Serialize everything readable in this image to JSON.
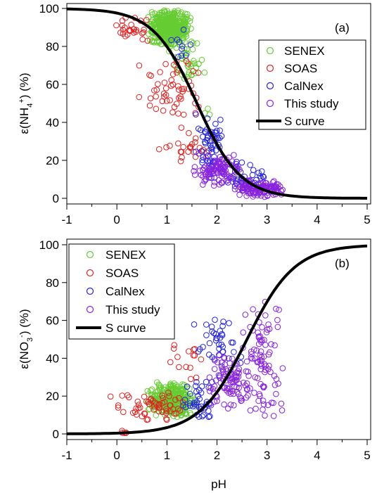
{
  "chart_data": [
    {
      "type": "scatter",
      "panel_label": "(a)",
      "ylabel_prefix": "ε(NH",
      "ylabel_sub": "4",
      "ylabel_sup": "+",
      "ylabel_suffix": ") (%)",
      "xlabel": "",
      "xlim": [
        -1,
        5
      ],
      "ylim": [
        0,
        100
      ],
      "x_ticks": [
        "-1",
        "0",
        "1",
        "2",
        "3",
        "4",
        "5"
      ],
      "y_ticks": [
        "0",
        "20",
        "40",
        "60",
        "80",
        "100"
      ],
      "legend_position": "right",
      "legend": [
        {
          "name": "SENEX",
          "marker": "circle",
          "color": "#66cc33"
        },
        {
          "name": "SOAS",
          "marker": "circle",
          "color": "#dd2222"
        },
        {
          "name": "CalNex",
          "marker": "circle",
          "color": "#2222dd"
        },
        {
          "name": "This study",
          "marker": "circle",
          "color": "#8822dd"
        },
        {
          "name": "S curve",
          "marker": "line",
          "color": "#000000"
        }
      ],
      "series": [
        {
          "name": "SENEX",
          "color": "#66cc33",
          "clusters": [
            {
              "x": [
                0.6,
                1.5
              ],
              "y": [
                80,
                100
              ],
              "n": 420
            },
            {
              "x": [
                1.0,
                1.8
              ],
              "y": [
                60,
                85
              ],
              "n": 40
            },
            {
              "x": [
                1.6,
                1.9
              ],
              "y": [
                42,
                50
              ],
              "n": 3
            }
          ]
        },
        {
          "name": "SOAS",
          "color": "#dd2222",
          "clusters": [
            {
              "x": [
                -0.1,
                0.7
              ],
              "y": [
                82,
                97
              ],
              "n": 28
            },
            {
              "x": [
                0.4,
                1.8
              ],
              "y": [
                40,
                75
              ],
              "n": 55
            },
            {
              "x": [
                0.8,
                2.0
              ],
              "y": [
                15,
                40
              ],
              "n": 25
            }
          ]
        },
        {
          "name": "CalNex",
          "color": "#2222dd",
          "clusters": [
            {
              "x": [
                1.5,
                2.2
              ],
              "y": [
                8,
                45
              ],
              "n": 55
            },
            {
              "x": [
                2.0,
                3.0
              ],
              "y": [
                2,
                20
              ],
              "n": 35
            },
            {
              "x": [
                1.0,
                1.6
              ],
              "y": [
                60,
                100
              ],
              "n": 10
            }
          ]
        },
        {
          "name": "This study",
          "color": "#8822dd",
          "clusters": [
            {
              "x": [
                1.5,
                2.5
              ],
              "y": [
                5,
                25
              ],
              "n": 110
            },
            {
              "x": [
                2.3,
                3.4
              ],
              "y": [
                0,
                10
              ],
              "n": 130
            }
          ]
        }
      ],
      "s_curve": {
        "midpoint": 1.6,
        "slope": 2.3,
        "increasing": false
      }
    },
    {
      "type": "scatter",
      "panel_label": "(b)",
      "ylabel_prefix": "ε(NO",
      "ylabel_sub": "3",
      "ylabel_sup": "-",
      "ylabel_suffix": ") (%)",
      "xlabel": "pH",
      "xlim": [
        -1,
        5
      ],
      "ylim": [
        0,
        100
      ],
      "x_ticks": [
        "-1",
        "0",
        "1",
        "2",
        "3",
        "4",
        "5"
      ],
      "y_ticks": [
        "0",
        "20",
        "40",
        "60",
        "80",
        "100"
      ],
      "legend_position": "top-left",
      "legend": [
        {
          "name": "SENEX",
          "marker": "circle",
          "color": "#66cc33"
        },
        {
          "name": "SOAS",
          "marker": "circle",
          "color": "#dd2222"
        },
        {
          "name": "CalNex",
          "marker": "circle",
          "color": "#2222dd"
        },
        {
          "name": "This study",
          "marker": "circle",
          "color": "#8822dd"
        },
        {
          "name": "S curve",
          "marker": "line",
          "color": "#000000"
        }
      ],
      "series": [
        {
          "name": "SENEX",
          "color": "#66cc33",
          "clusters": [
            {
              "x": [
                0.6,
                1.6
              ],
              "y": [
                8,
                28
              ],
              "n": 300
            }
          ]
        },
        {
          "name": "SOAS",
          "color": "#dd2222",
          "clusters": [
            {
              "x": [
                -0.2,
                1.5
              ],
              "y": [
                5,
                25
              ],
              "n": 60
            },
            {
              "x": [
                0.0,
                0.4
              ],
              "y": [
                0,
                2
              ],
              "n": 5
            },
            {
              "x": [
                1.0,
                1.8
              ],
              "y": [
                25,
                50
              ],
              "n": 15
            }
          ]
        },
        {
          "name": "CalNex",
          "color": "#2222dd",
          "clusters": [
            {
              "x": [
                1.3,
                2.0
              ],
              "y": [
                5,
                30
              ],
              "n": 40
            },
            {
              "x": [
                1.5,
                2.6
              ],
              "y": [
                30,
                65
              ],
              "n": 40
            }
          ]
        },
        {
          "name": "This study",
          "color": "#8822dd",
          "clusters": [
            {
              "x": [
                1.8,
                2.7
              ],
              "y": [
                10,
                45
              ],
              "n": 90
            },
            {
              "x": [
                2.4,
                3.4
              ],
              "y": [
                5,
                75
              ],
              "n": 90
            }
          ]
        }
      ],
      "s_curve": {
        "midpoint": 2.6,
        "slope": 2.1,
        "increasing": true
      }
    }
  ]
}
